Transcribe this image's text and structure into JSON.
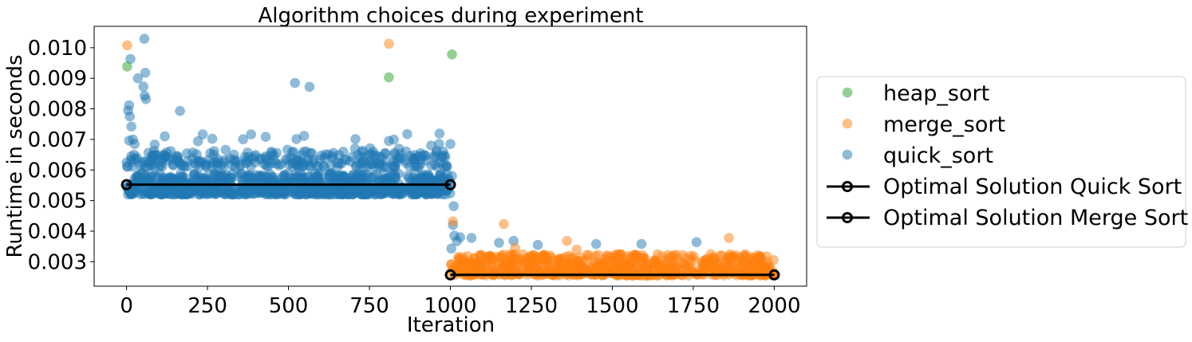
{
  "chart_data": {
    "type": "scatter",
    "title": "Algorithm choices during experiment",
    "xlabel": "Iteration",
    "ylabel": "Runtime in seconds",
    "xlim": [
      -100,
      2100
    ],
    "ylim": [
      0.0022,
      0.0107
    ],
    "xticks": [
      0,
      250,
      500,
      750,
      1000,
      1250,
      1500,
      1750,
      2000
    ],
    "xtick_labels": [
      "0",
      "250",
      "500",
      "750",
      "1000",
      "1250",
      "1500",
      "1750",
      "2000"
    ],
    "yticks": [
      0.003,
      0.004,
      0.005,
      0.006,
      0.007,
      0.008,
      0.009,
      0.01
    ],
    "ytick_labels": [
      "0.003",
      "0.004",
      "0.005",
      "0.006",
      "0.007",
      "0.008",
      "0.009",
      "0.010"
    ],
    "grid": false,
    "legend_position": "outside-right",
    "series": [
      {
        "name": "heap_sort",
        "kind": "scatter",
        "color": "#2ca02c",
        "points": [
          [
            2,
            0.00938
          ],
          [
            810,
            0.00903
          ],
          [
            1005,
            0.00978
          ]
        ]
      },
      {
        "name": "merge_sort",
        "kind": "scatter",
        "color": "#ff7f0e",
        "points": [
          [
            2,
            0.01008
          ],
          [
            810,
            0.01013
          ],
          [
            1008,
            0.00432
          ],
          [
            1165,
            0.00423
          ],
          [
            1360,
            0.00368
          ],
          [
            1860,
            0.00378
          ],
          [
            1200,
            0.00345
          ],
          [
            1390,
            0.0034
          ]
        ],
        "band": {
          "x_range": [
            1000,
            2000
          ],
          "y_range": [
            0.00255,
            0.00325
          ],
          "count": 700
        }
      },
      {
        "name": "quick_sort",
        "kind": "scatter",
        "color": "#1f77b4",
        "points": [
          [
            5,
            0.00795
          ],
          [
            8,
            0.00812
          ],
          [
            10,
            0.00775
          ],
          [
            12,
            0.00963
          ],
          [
            15,
            0.00742
          ],
          [
            20,
            0.007
          ],
          [
            25,
            0.00685
          ],
          [
            35,
            0.009
          ],
          [
            55,
            0.01029
          ],
          [
            58,
            0.00918
          ],
          [
            52,
            0.00873
          ],
          [
            56,
            0.00843
          ],
          [
            60,
            0.00832
          ],
          [
            165,
            0.00793
          ],
          [
            520,
            0.00885
          ],
          [
            565,
            0.00872
          ],
          [
            810,
            0.00695
          ],
          [
            1000,
            0.00685
          ],
          [
            1005,
            0.0058
          ],
          [
            1010,
            0.00482
          ],
          [
            1008,
            0.0042
          ],
          [
            1012,
            0.00385
          ],
          [
            1003,
            0.00343
          ],
          [
            1020,
            0.00367
          ],
          [
            1030,
            0.0038
          ],
          [
            1065,
            0.00378
          ],
          [
            1150,
            0.00362
          ],
          [
            1195,
            0.00368
          ],
          [
            1270,
            0.00355
          ],
          [
            1450,
            0.00358
          ],
          [
            1590,
            0.00358
          ],
          [
            1760,
            0.00364
          ]
        ],
        "bands": [
          {
            "x_range": [
              0,
              1000
            ],
            "y_range": [
              0.0052,
              0.0059
            ],
            "count": 900
          },
          {
            "x_range": [
              0,
              1000
            ],
            "y_range": [
              0.0061,
              0.0066
            ],
            "count": 260
          },
          {
            "x_range": [
              0,
              1000
            ],
            "y_range": [
              0.0066,
              0.0072
            ],
            "count": 30
          }
        ]
      },
      {
        "name": "Optimal Solution Quick Sort",
        "kind": "line",
        "color": "#000000",
        "points": [
          [
            0,
            0.00552
          ],
          [
            1000,
            0.00552
          ]
        ]
      },
      {
        "name": "Optimal Solution Merge Sort",
        "kind": "line",
        "color": "#000000",
        "points": [
          [
            1000,
            0.00257
          ],
          [
            2000,
            0.00257
          ]
        ]
      }
    ]
  }
}
